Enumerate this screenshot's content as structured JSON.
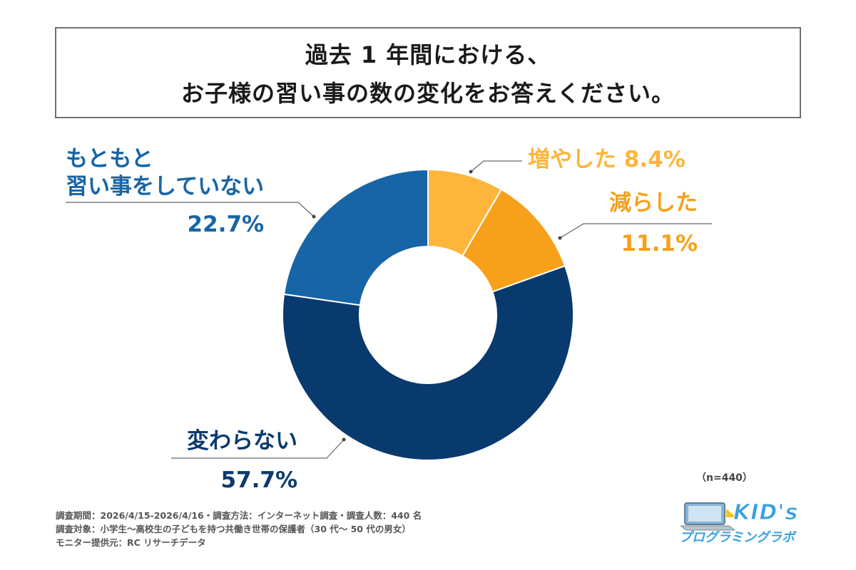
{
  "header": {
    "title_line1": "過去 1 年間における、",
    "title_line2": "お子様の習い事の数の変化をお答えください。"
  },
  "chart_data": {
    "type": "pie",
    "donut": true,
    "slices": [
      {
        "label": "増やした",
        "value": 8.4,
        "value_text": "8.4%",
        "color": "#FDB53C"
      },
      {
        "label": "減らした",
        "value": 11.1,
        "value_text": "11.1%",
        "color": "#F7A01A"
      },
      {
        "label": "変わらない",
        "value": 57.7,
        "value_text": "57.7%",
        "color": "#083A6E"
      },
      {
        "label_line1": "もともと",
        "label_line2": "習い事をしていない",
        "value": 22.7,
        "value_text": "22.7%",
        "color": "#1765A6"
      }
    ],
    "sample_note": "（n=440）"
  },
  "footnotes": {
    "line1": "調査期間：2026/4/15-2026/4/16・調査方法：インターネット調査・調査人数：440 名",
    "line2": "調査対象：小学生〜高校生の子どもを持つ共働き世帯の保護者（30 代〜 50 代の男女）",
    "line3": "モニター提供元：RC リサーチデータ"
  },
  "logo": {
    "main": "KID's",
    "sub": "プログラミングラボ"
  },
  "colors": {
    "orange_light": "#FDB53C",
    "orange": "#F7A01A",
    "navy": "#083A6E",
    "blue": "#1765A6"
  }
}
